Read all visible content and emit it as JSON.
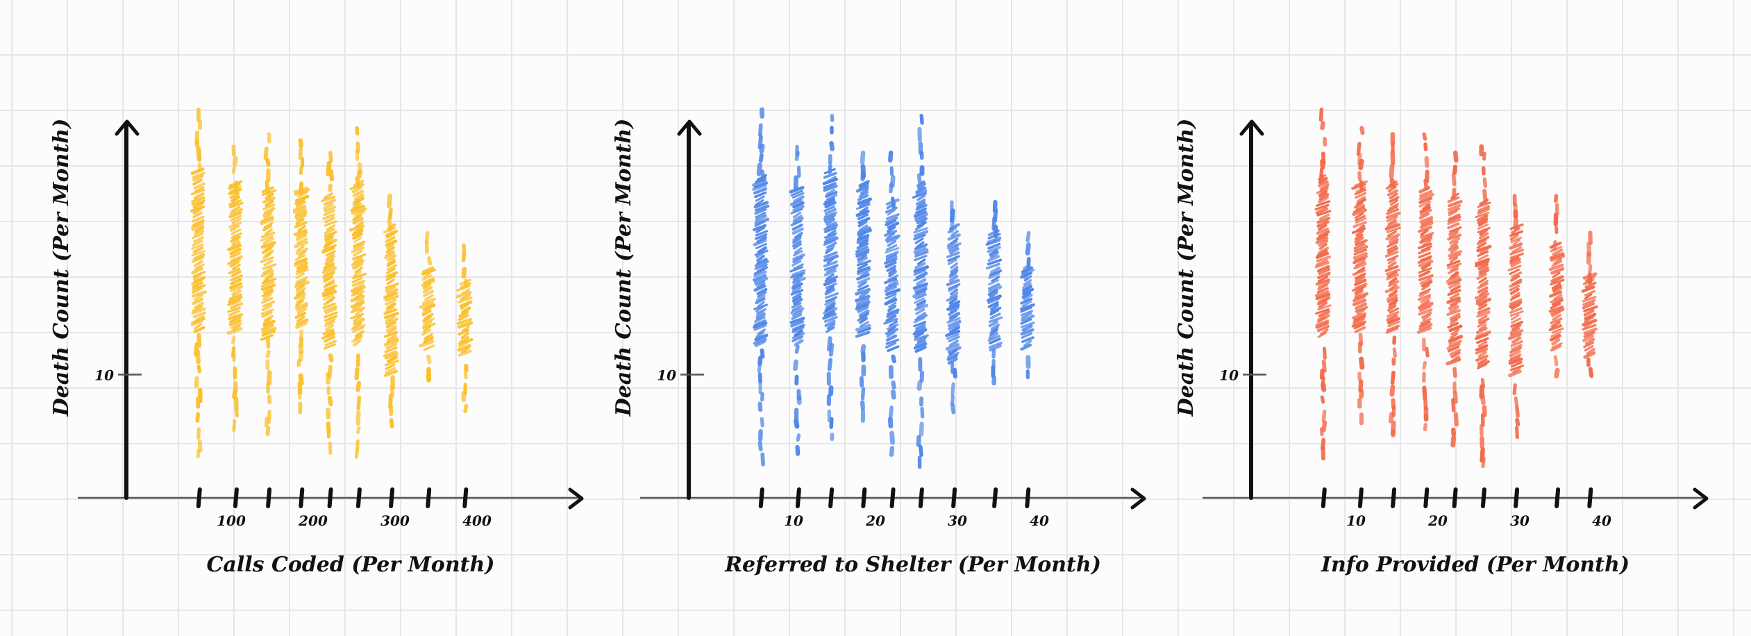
{
  "colors": {
    "calls": "#FBC02D",
    "shelter": "#4F86E8",
    "info": "#F36A4A"
  },
  "chart_data": [
    {
      "type": "scatter",
      "xlabel": "Calls Coded (Per Month)",
      "ylabel": "Death Count (Per Month)",
      "x_ticks": [
        "100",
        "200",
        "300",
        "400"
      ],
      "y_ticks": [
        "10"
      ],
      "xlim": [
        0,
        500
      ],
      "ylim": [
        0,
        20
      ],
      "series": [
        {
          "columns": [
            {
              "x": 60,
              "ymin": 3.5,
              "ymax": 31.5,
              "dense_min": 13.5,
              "dense_max": 26.5
            },
            {
              "x": 105,
              "ymin": 5.5,
              "ymax": 28.5,
              "dense_min": 13.5,
              "dense_max": 25.5
            },
            {
              "x": 145,
              "ymin": 5.0,
              "ymax": 29.5,
              "dense_min": 13.0,
              "dense_max": 25.0
            },
            {
              "x": 185,
              "ymin": 6.5,
              "ymax": 29.0,
              "dense_min": 14.0,
              "dense_max": 25.0
            },
            {
              "x": 220,
              "ymin": 4.0,
              "ymax": 28.0,
              "dense_min": 12.0,
              "dense_max": 24.5
            },
            {
              "x": 255,
              "ymin": 3.5,
              "ymax": 30.0,
              "dense_min": 12.5,
              "dense_max": 25.5
            },
            {
              "x": 295,
              "ymin": 6.0,
              "ymax": 24.5,
              "dense_min": 10.0,
              "dense_max": 22.0
            },
            {
              "x": 340,
              "ymin": 9.5,
              "ymax": 21.5,
              "dense_min": 12.0,
              "dense_max": 18.5
            },
            {
              "x": 385,
              "ymin": 7.0,
              "ymax": 20.5,
              "dense_min": 11.5,
              "dense_max": 17.5
            }
          ]
        }
      ]
    },
    {
      "type": "scatter",
      "xlabel": "Referred to Shelter (Per Month)",
      "ylabel": "Death Count (Per Month)",
      "x_ticks": [
        "10",
        "20",
        "30",
        "40"
      ],
      "y_ticks": [
        "10"
      ],
      "xlim": [
        0,
        50
      ],
      "ylim": [
        0,
        20
      ],
      "series": [
        {
          "columns": [
            {
              "x": 6,
              "ymin": 3.5,
              "ymax": 31.5,
              "dense_min": 12.5,
              "dense_max": 26.0
            },
            {
              "x": 10.5,
              "ymin": 4.0,
              "ymax": 28.5,
              "dense_min": 12.5,
              "dense_max": 25.0
            },
            {
              "x": 14.5,
              "ymin": 4.5,
              "ymax": 31.0,
              "dense_min": 13.5,
              "dense_max": 26.5
            },
            {
              "x": 18.5,
              "ymin": 6.5,
              "ymax": 28.0,
              "dense_min": 13.0,
              "dense_max": 25.5
            },
            {
              "x": 22,
              "ymin": 4.0,
              "ymax": 28.0,
              "dense_min": 12.0,
              "dense_max": 24.0
            },
            {
              "x": 25.5,
              "ymin": 3.0,
              "ymax": 31.0,
              "dense_min": 12.0,
              "dense_max": 25.5
            },
            {
              "x": 29.5,
              "ymin": 7.0,
              "ymax": 24.0,
              "dense_min": 11.0,
              "dense_max": 22.0
            },
            {
              "x": 34.5,
              "ymin": 9.5,
              "ymax": 24.0,
              "dense_min": 12.0,
              "dense_max": 21.5
            },
            {
              "x": 38.5,
              "ymin": 10.0,
              "ymax": 21.5,
              "dense_min": 12.0,
              "dense_max": 18.5
            }
          ]
        }
      ]
    },
    {
      "type": "scatter",
      "xlabel": "Info Provided (Per Month)",
      "ylabel": "Death Count (Per Month)",
      "x_ticks": [
        "10",
        "20",
        "30",
        "40"
      ],
      "y_ticks": [
        "10"
      ],
      "xlim": [
        0,
        50
      ],
      "ylim": [
        0,
        20
      ],
      "series": [
        {
          "columns": [
            {
              "x": 6,
              "ymin": 3.5,
              "ymax": 31.5,
              "dense_min": 13.0,
              "dense_max": 26.0
            },
            {
              "x": 10.5,
              "ymin": 5.5,
              "ymax": 30.0,
              "dense_min": 13.5,
              "dense_max": 25.5
            },
            {
              "x": 14.5,
              "ymin": 5.0,
              "ymax": 29.5,
              "dense_min": 13.5,
              "dense_max": 25.5
            },
            {
              "x": 18.5,
              "ymin": 5.5,
              "ymax": 29.5,
              "dense_min": 13.5,
              "dense_max": 25.0
            },
            {
              "x": 22,
              "ymin": 4.0,
              "ymax": 28.0,
              "dense_min": 11.0,
              "dense_max": 24.5
            },
            {
              "x": 25.5,
              "ymin": 3.0,
              "ymax": 28.5,
              "dense_min": 10.5,
              "dense_max": 24.0
            },
            {
              "x": 29.5,
              "ymin": 5.0,
              "ymax": 24.5,
              "dense_min": 10.0,
              "dense_max": 22.0
            },
            {
              "x": 34.5,
              "ymin": 9.5,
              "ymax": 24.5,
              "dense_min": 12.0,
              "dense_max": 20.5
            },
            {
              "x": 38.5,
              "ymin": 10.0,
              "ymax": 21.5,
              "dense_min": 11.5,
              "dense_max": 18.0
            }
          ]
        }
      ]
    }
  ]
}
